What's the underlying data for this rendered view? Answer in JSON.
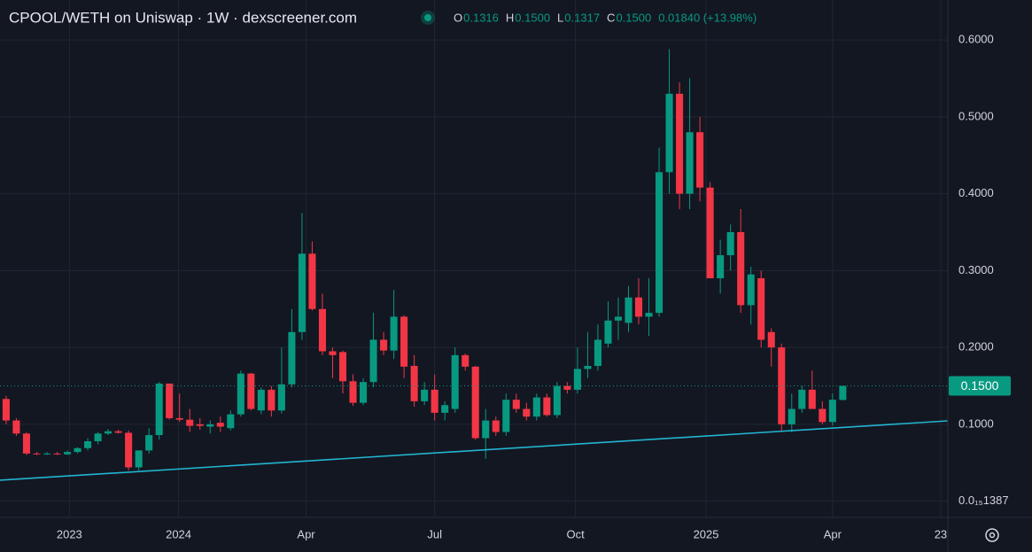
{
  "chart_data": {
    "type": "candlestick",
    "title": "CPOOL/WETH on Uniswap · 1W · dexscreener.com",
    "ohlc_legend": [
      {
        "key": "O",
        "value": "0.1316"
      },
      {
        "key": "H",
        "value": "0.1500"
      },
      {
        "key": "L",
        "value": "0.1317"
      },
      {
        "key": "C",
        "value": "0.1500"
      }
    ],
    "change": "0.01840 (+13.98%)",
    "last_price_label": "0.1500",
    "up_color": "#089981",
    "down_color": "#f23645",
    "open": [
      0.133,
      0.105,
      0.088,
      0.062,
      0.061,
      0.062,
      0.061,
      0.064,
      0.069,
      0.078,
      0.088,
      0.091,
      0.089,
      0.044,
      0.066,
      0.086,
      0.153,
      0.108,
      0.106,
      0.1,
      0.097,
      0.102,
      0.095,
      0.113,
      0.166,
      0.118,
      0.145,
      0.118,
      0.152,
      0.22,
      0.322,
      0.25,
      0.195,
      0.194,
      0.156,
      0.128,
      0.155,
      0.21,
      0.196,
      0.24,
      0.176,
      0.13,
      0.145,
      0.115,
      0.12,
      0.19,
      0.175,
      0.082,
      0.105,
      0.09,
      0.132,
      0.12,
      0.11,
      0.135,
      0.112,
      0.15,
      0.145,
      0.172,
      0.176,
      0.205,
      0.235,
      0.232,
      0.265,
      0.24,
      0.245,
      0.428,
      0.53,
      0.4,
      0.48,
      0.408,
      0.29,
      0.32,
      0.35,
      0.255,
      0.29,
      0.22,
      0.2,
      0.1,
      0.12,
      0.145,
      0.12,
      0.103,
      0.1316
    ],
    "high": [
      0.137,
      0.108,
      0.09,
      0.064,
      0.064,
      0.064,
      0.066,
      0.07,
      0.082,
      0.09,
      0.094,
      0.093,
      0.092,
      0.066,
      0.095,
      0.155,
      0.153,
      0.14,
      0.12,
      0.108,
      0.105,
      0.11,
      0.118,
      0.17,
      0.167,
      0.148,
      0.15,
      0.2,
      0.25,
      0.375,
      0.338,
      0.27,
      0.2,
      0.196,
      0.165,
      0.16,
      0.245,
      0.22,
      0.275,
      0.242,
      0.19,
      0.155,
      0.165,
      0.13,
      0.2,
      0.192,
      0.176,
      0.12,
      0.11,
      0.14,
      0.14,
      0.128,
      0.14,
      0.14,
      0.155,
      0.155,
      0.2,
      0.22,
      0.23,
      0.26,
      0.265,
      0.28,
      0.29,
      0.29,
      0.46,
      0.588,
      0.545,
      0.55,
      0.5,
      0.415,
      0.34,
      0.36,
      0.38,
      0.305,
      0.3,
      0.225,
      0.205,
      0.14,
      0.15,
      0.17,
      0.13,
      0.14,
      0.15
    ],
    "low": [
      0.1,
      0.085,
      0.06,
      0.06,
      0.06,
      0.06,
      0.06,
      0.062,
      0.066,
      0.074,
      0.086,
      0.088,
      0.04,
      0.04,
      0.062,
      0.08,
      0.106,
      0.103,
      0.09,
      0.093,
      0.088,
      0.09,
      0.092,
      0.11,
      0.118,
      0.113,
      0.11,
      0.114,
      0.148,
      0.21,
      0.248,
      0.19,
      0.16,
      0.14,
      0.124,
      0.125,
      0.148,
      0.19,
      0.185,
      0.16,
      0.123,
      0.125,
      0.105,
      0.105,
      0.115,
      0.17,
      0.08,
      0.055,
      0.085,
      0.085,
      0.115,
      0.105,
      0.105,
      0.11,
      0.108,
      0.14,
      0.14,
      0.16,
      0.17,
      0.2,
      0.21,
      0.22,
      0.23,
      0.215,
      0.24,
      0.4,
      0.38,
      0.38,
      0.39,
      0.29,
      0.27,
      0.3,
      0.245,
      0.23,
      0.2,
      0.175,
      0.092,
      0.09,
      0.115,
      0.12,
      0.1,
      0.098,
      0.1317
    ],
    "close": [
      0.105,
      0.088,
      0.062,
      0.061,
      0.062,
      0.061,
      0.064,
      0.069,
      0.078,
      0.088,
      0.091,
      0.089,
      0.044,
      0.066,
      0.086,
      0.153,
      0.108,
      0.106,
      0.098,
      0.098,
      0.1,
      0.097,
      0.113,
      0.166,
      0.12,
      0.145,
      0.118,
      0.152,
      0.22,
      0.322,
      0.25,
      0.195,
      0.19,
      0.156,
      0.128,
      0.155,
      0.21,
      0.196,
      0.24,
      0.175,
      0.13,
      0.145,
      0.115,
      0.125,
      0.19,
      0.175,
      0.082,
      0.105,
      0.09,
      0.132,
      0.12,
      0.11,
      0.135,
      0.112,
      0.15,
      0.145,
      0.172,
      0.176,
      0.21,
      0.235,
      0.24,
      0.265,
      0.24,
      0.245,
      0.428,
      0.53,
      0.4,
      0.48,
      0.408,
      0.29,
      0.32,
      0.35,
      0.255,
      0.295,
      0.21,
      0.2,
      0.1,
      0.12,
      0.145,
      0.12,
      0.103,
      0.132,
      0.15
    ],
    "xlim": [
      -0.6,
      92.3
    ],
    "xticks": [
      {
        "value": 6.2,
        "label": "2023"
      },
      {
        "value": 16.9,
        "label": "2024"
      },
      {
        "value": 29.4,
        "label": "Apr"
      },
      {
        "value": 42.0,
        "label": "Jul"
      },
      {
        "value": 55.8,
        "label": "Oct"
      },
      {
        "value": 68.6,
        "label": "2025"
      },
      {
        "value": 81.0,
        "label": "Apr"
      },
      {
        "value": 91.6,
        "label": "23"
      }
    ],
    "ylim": [
      -0.02,
      0.652
    ],
    "yticks": [
      {
        "value": 0.6,
        "label": "0.6000"
      },
      {
        "value": 0.5,
        "label": "0.5000"
      },
      {
        "value": 0.4,
        "label": "0.4000"
      },
      {
        "value": 0.3,
        "label": "0.3000"
      },
      {
        "value": 0.2,
        "label": "0.2000"
      },
      {
        "value": 0.1,
        "label": "0.1000"
      },
      {
        "value": 1.387e-16,
        "label": "0.0₁₅1387"
      }
    ],
    "grid": true,
    "trendline": {
      "x": [
        -0.6,
        92.3
      ],
      "y": [
        0.0273,
        0.1045
      ],
      "color": "#22b5d0"
    }
  }
}
